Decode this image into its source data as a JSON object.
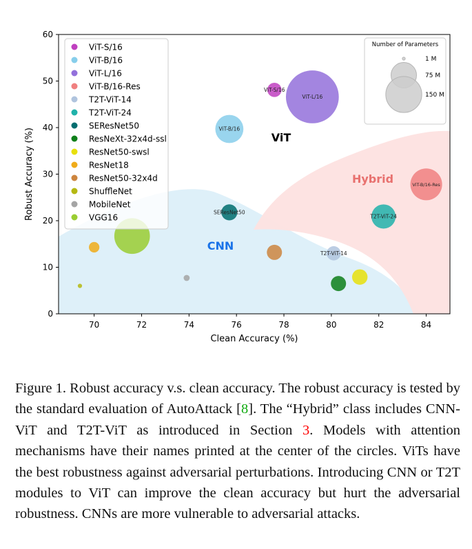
{
  "chart_data": {
    "type": "scatter",
    "xlabel": "Clean Accuracy (%)",
    "ylabel": "Robust Accuracy (%)",
    "xlim": [
      68.5,
      85
    ],
    "ylim": [
      0,
      60
    ],
    "xticks": [
      70,
      72,
      74,
      76,
      78,
      80,
      82,
      84
    ],
    "yticks": [
      0,
      10,
      20,
      30,
      40,
      50,
      60
    ],
    "grid": false,
    "legend_position": "top-left",
    "size_legend": {
      "title": "Number of Parameters",
      "entries": [
        {
          "label": "1 M",
          "params": 1
        },
        {
          "label": "75 M",
          "params": 75
        },
        {
          "label": "150 M",
          "params": 150
        }
      ]
    },
    "regions": [
      {
        "label": "ViT",
        "color": "#000000"
      },
      {
        "label": "CNN",
        "color": "#1a73e8"
      },
      {
        "label": "Hybrid",
        "color": "#e8716f"
      }
    ],
    "series": [
      {
        "name": "ViT-S/16",
        "x": 77.6,
        "y": 48.1,
        "params": 22,
        "color": "#bf40bf",
        "label_inside": true
      },
      {
        "name": "ViT-B/16",
        "x": 75.7,
        "y": 39.7,
        "params": 86,
        "color": "#87ceeb",
        "label_inside": true
      },
      {
        "name": "ViT-L/16",
        "x": 79.2,
        "y": 46.6,
        "params": 304,
        "color": "#9370db",
        "label_inside": true
      },
      {
        "name": "ViT-B/16-Res",
        "x": 84.0,
        "y": 27.8,
        "params": 110,
        "color": "#f08080",
        "label_inside": true
      },
      {
        "name": "T2T-ViT-14",
        "x": 80.1,
        "y": 13.0,
        "params": 22,
        "color": "#b0c4de",
        "label_inside": true
      },
      {
        "name": "T2T-ViT-24",
        "x": 82.2,
        "y": 20.9,
        "params": 64,
        "color": "#20b2aa",
        "label_inside": true
      },
      {
        "name": "SEResNet50",
        "x": 75.7,
        "y": 21.8,
        "params": 28,
        "color": "#006d6f",
        "label_inside": true
      },
      {
        "name": "ResNeXt-32x4d-ssl",
        "x": 80.3,
        "y": 6.5,
        "params": 25,
        "color": "#0e7f1a",
        "label_inside": false
      },
      {
        "name": "ResNet50-swsl",
        "x": 81.2,
        "y": 7.9,
        "params": 26,
        "color": "#e8e00c",
        "label_inside": false
      },
      {
        "name": "ResNet18",
        "x": 70.0,
        "y": 14.3,
        "params": 12,
        "color": "#f0ac1a",
        "label_inside": false
      },
      {
        "name": "ResNet50-32x4d",
        "x": 77.6,
        "y": 13.2,
        "params": 25,
        "color": "#cd853f",
        "label_inside": false
      },
      {
        "name": "ShuffleNet",
        "x": 69.4,
        "y": 6.0,
        "params": 2,
        "color": "#b5b812",
        "label_inside": false
      },
      {
        "name": "MobileNet",
        "x": 73.9,
        "y": 7.7,
        "params": 4,
        "color": "#a5a5a5",
        "label_inside": false
      },
      {
        "name": "VGG16",
        "x": 71.6,
        "y": 16.7,
        "params": 138,
        "color": "#9acd32",
        "label_inside": false
      }
    ]
  },
  "caption": {
    "label": "Figure 1.",
    "text_1": " Robust accuracy v.s. clean accuracy. The robust accuracy is tested by the standard evaluation of AutoAttack [",
    "cite": "8",
    "text_2": "]. The “Hybrid” class includes CNN-ViT and T2T-ViT as introduced in Section ",
    "ref": "3",
    "text_3": ". Models with attention mechanisms have their names printed at the center of the circles. ViTs have the best robustness against adversarial perturbations. Introducing CNN or T2T modules to ViT can improve the clean accuracy but hurt the adversarial robustness. CNNs are more vulnerable to adversarial attacks."
  }
}
